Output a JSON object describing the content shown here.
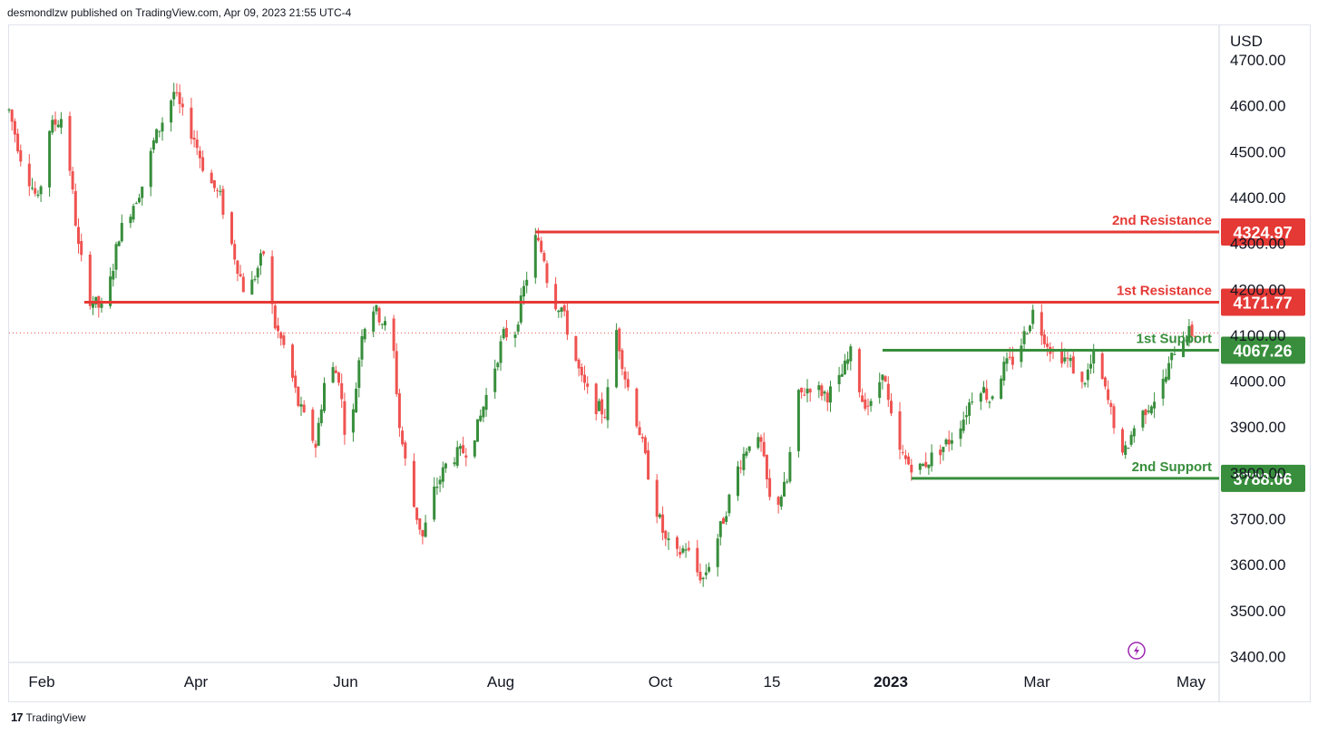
{
  "header": {
    "published_text": "desmondlzw published on TradingView.com, Apr 09, 2023 21:55 UTC-4"
  },
  "footer": {
    "brand": "TradingView",
    "logo_text": "17"
  },
  "colors": {
    "up": "#388e3c",
    "down": "#ef5350",
    "resistance": "#e53935",
    "support": "#388e3c"
  },
  "chart_data": {
    "type": "candlestick",
    "currency": "USD",
    "y_ticks": [
      4700,
      4600,
      4500,
      4400,
      4300,
      4200,
      4100,
      4000,
      3900,
      3800,
      3700,
      3600,
      3500,
      3400
    ],
    "y_tick_labels": [
      "4700.00",
      "4600.00",
      "4500.00",
      "4400.00",
      "4300.00",
      "4200.00",
      "4100.00",
      "4000.00",
      "3900.00",
      "3800.00",
      "3700.00",
      "3600.00",
      "3500.00",
      "3400.00"
    ],
    "ylim": [
      3390,
      4720
    ],
    "x_labels": [
      "Feb",
      "Apr",
      "Jun",
      "Aug",
      "Oct",
      "15",
      "2023",
      "Mar",
      "May"
    ],
    "bold_x_labels": [
      "2023"
    ],
    "last_price": 4105.02,
    "levels": [
      {
        "name": "2nd Resistance",
        "value": 4324.97,
        "label": "4324.97",
        "kind": "resistance",
        "from_day": 182
      },
      {
        "name": "1st Resistance",
        "value": 4171.77,
        "label": "4171.77",
        "kind": "resistance",
        "from_day": 26
      },
      {
        "name": "1st Support",
        "value": 4067.26,
        "label": "4067.26",
        "kind": "support",
        "from_day": 302
      },
      {
        "name": "2nd Support",
        "value": 3788.06,
        "label": "3788.06",
        "kind": "support",
        "from_day": 312
      }
    ],
    "path_anchors": [
      [
        0,
        4590
      ],
      [
        4,
        4490
      ],
      [
        10,
        4390
      ],
      [
        14,
        4550
      ],
      [
        19,
        4580
      ],
      [
        24,
        4290
      ],
      [
        28,
        4180
      ],
      [
        33,
        4150
      ],
      [
        38,
        4320
      ],
      [
        47,
        4440
      ],
      [
        50,
        4520
      ],
      [
        57,
        4630
      ],
      [
        60,
        4580
      ],
      [
        64,
        4530
      ],
      [
        68,
        4450
      ],
      [
        73,
        4400
      ],
      [
        76,
        4320
      ],
      [
        82,
        4180
      ],
      [
        88,
        4280
      ],
      [
        92,
        4120
      ],
      [
        96,
        4060
      ],
      [
        100,
        3950
      ],
      [
        106,
        3860
      ],
      [
        110,
        4040
      ],
      [
        114,
        4010
      ],
      [
        116,
        3900
      ],
      [
        118,
        3870
      ],
      [
        122,
        4110
      ],
      [
        126,
        4160
      ],
      [
        130,
        4120
      ],
      [
        133,
        4060
      ],
      [
        135,
        3900
      ],
      [
        139,
        3750
      ],
      [
        143,
        3660
      ],
      [
        147,
        3760
      ],
      [
        152,
        3830
      ],
      [
        158,
        3850
      ],
      [
        162,
        3900
      ],
      [
        166,
        3990
      ],
      [
        171,
        4100
      ],
      [
        175,
        4110
      ],
      [
        178,
        4200
      ],
      [
        182,
        4310
      ],
      [
        185,
        4270
      ],
      [
        187,
        4180
      ],
      [
        191,
        4160
      ],
      [
        194,
        4090
      ],
      [
        198,
        4000
      ],
      [
        202,
        3950
      ],
      [
        206,
        3930
      ],
      [
        210,
        4110
      ],
      [
        213,
        4010
      ],
      [
        218,
        3890
      ],
      [
        223,
        3740
      ],
      [
        227,
        3650
      ],
      [
        231,
        3620
      ],
      [
        234,
        3640
      ],
      [
        237,
        3590
      ],
      [
        240,
        3570
      ],
      [
        243,
        3620
      ],
      [
        247,
        3700
      ],
      [
        252,
        3810
      ],
      [
        256,
        3870
      ],
      [
        260,
        3860
      ],
      [
        263,
        3740
      ],
      [
        266,
        3740
      ],
      [
        269,
        3780
      ],
      [
        272,
        3960
      ],
      [
        277,
        3990
      ],
      [
        283,
        3970
      ],
      [
        287,
        4000
      ],
      [
        291,
        4060
      ],
      [
        295,
        3960
      ],
      [
        299,
        3940
      ],
      [
        302,
        4030
      ],
      [
        304,
        3950
      ],
      [
        307,
        3850
      ],
      [
        311,
        3820
      ],
      [
        315,
        3810
      ],
      [
        320,
        3840
      ],
      [
        325,
        3870
      ],
      [
        330,
        3920
      ],
      [
        335,
        4000
      ],
      [
        339,
        3960
      ],
      [
        344,
        4030
      ],
      [
        348,
        4050
      ],
      [
        351,
        4100
      ],
      [
        354,
        4150
      ],
      [
        357,
        4110
      ],
      [
        361,
        4060
      ],
      [
        363,
        4060
      ],
      [
        367,
        4040
      ],
      [
        371,
        3990
      ],
      [
        375,
        4050
      ],
      [
        378,
        4000
      ],
      [
        382,
        3910
      ],
      [
        385,
        3830
      ],
      [
        389,
        3900
      ],
      [
        393,
        3940
      ],
      [
        397,
        3970
      ],
      [
        400,
        4010
      ],
      [
        404,
        4090
      ],
      [
        408,
        4105
      ],
      [
        410,
        4105
      ]
    ]
  }
}
